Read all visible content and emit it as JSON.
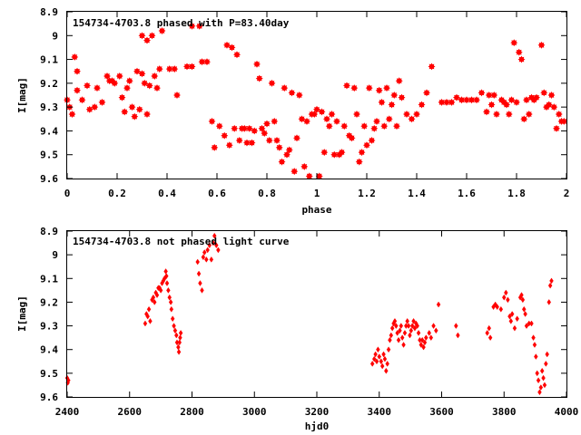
{
  "colors": {
    "marker": "#ff0000",
    "frame": "#000000",
    "background": "#ffffff"
  },
  "chart_data": [
    {
      "type": "scatter",
      "title": "154734-4703.8 phased with P=83.40day",
      "xlabel": "phase",
      "ylabel": "I[mag]",
      "xlim": [
        0,
        2
      ],
      "ylim": [
        9.6,
        8.9
      ],
      "y_inverted": true,
      "grid": false,
      "marker": "star",
      "xticks": [
        "0",
        "0.2",
        "0.4",
        "0.6",
        "0.8",
        "1",
        "1.2",
        "1.4",
        "1.6",
        "1.8",
        "2"
      ],
      "yticks": [
        "8.9",
        "9",
        "9.1",
        "9.2",
        "9.3",
        "9.4",
        "9.5",
        "9.6"
      ],
      "xtick_values": [
        0,
        0.2,
        0.4,
        0.6,
        0.8,
        1,
        1.2,
        1.4,
        1.6,
        1.8,
        2
      ],
      "ytick_values": [
        8.9,
        9.0,
        9.1,
        9.2,
        9.3,
        9.4,
        9.5,
        9.6
      ],
      "points": [
        [
          0.0,
          9.27
        ],
        [
          0.01,
          9.3
        ],
        [
          0.02,
          9.33
        ],
        [
          0.03,
          9.09
        ],
        [
          0.04,
          9.15
        ],
        [
          0.04,
          9.23
        ],
        [
          0.06,
          9.27
        ],
        [
          0.08,
          9.21
        ],
        [
          0.09,
          9.31
        ],
        [
          0.11,
          9.3
        ],
        [
          0.12,
          9.22
        ],
        [
          0.14,
          9.28
        ],
        [
          0.16,
          9.17
        ],
        [
          0.17,
          9.19
        ],
        [
          0.18,
          9.19
        ],
        [
          0.19,
          9.2
        ],
        [
          0.21,
          9.17
        ],
        [
          0.22,
          9.26
        ],
        [
          0.23,
          9.32
        ],
        [
          0.24,
          9.22
        ],
        [
          0.25,
          9.19
        ],
        [
          0.26,
          9.3
        ],
        [
          0.27,
          9.34
        ],
        [
          0.28,
          9.15
        ],
        [
          0.29,
          9.31
        ],
        [
          0.3,
          9.16
        ],
        [
          0.3,
          9.0
        ],
        [
          0.31,
          9.2
        ],
        [
          0.32,
          9.33
        ],
        [
          0.32,
          9.02
        ],
        [
          0.33,
          9.21
        ],
        [
          0.34,
          9.0
        ],
        [
          0.35,
          9.17
        ],
        [
          0.36,
          9.22
        ],
        [
          0.37,
          9.14
        ],
        [
          0.38,
          8.98
        ],
        [
          0.41,
          9.14
        ],
        [
          0.43,
          9.14
        ],
        [
          0.44,
          9.25
        ],
        [
          0.48,
          9.13
        ],
        [
          0.5,
          8.96
        ],
        [
          0.5,
          9.13
        ],
        [
          0.53,
          8.96
        ],
        [
          0.54,
          9.11
        ],
        [
          0.56,
          9.11
        ],
        [
          0.58,
          9.36
        ],
        [
          0.59,
          9.47
        ],
        [
          0.61,
          9.38
        ],
        [
          0.63,
          9.42
        ],
        [
          0.64,
          9.04
        ],
        [
          0.65,
          9.46
        ],
        [
          0.66,
          9.05
        ],
        [
          0.67,
          9.39
        ],
        [
          0.68,
          9.08
        ],
        [
          0.69,
          9.44
        ],
        [
          0.7,
          9.39
        ],
        [
          0.71,
          9.39
        ],
        [
          0.72,
          9.45
        ],
        [
          0.73,
          9.39
        ],
        [
          0.74,
          9.45
        ],
        [
          0.75,
          9.4
        ],
        [
          0.76,
          9.12
        ],
        [
          0.77,
          9.18
        ],
        [
          0.78,
          9.39
        ],
        [
          0.79,
          9.41
        ],
        [
          0.8,
          9.37
        ],
        [
          0.81,
          9.44
        ],
        [
          0.82,
          9.2
        ],
        [
          0.83,
          9.36
        ],
        [
          0.84,
          9.44
        ],
        [
          0.85,
          9.47
        ],
        [
          0.86,
          9.53
        ],
        [
          0.87,
          9.22
        ],
        [
          0.88,
          9.5
        ],
        [
          0.89,
          9.48
        ],
        [
          0.9,
          9.24
        ],
        [
          0.91,
          9.57
        ],
        [
          0.92,
          9.43
        ],
        [
          0.93,
          9.25
        ],
        [
          0.94,
          9.35
        ],
        [
          0.95,
          9.55
        ],
        [
          0.96,
          9.36
        ],
        [
          0.97,
          9.59
        ],
        [
          0.98,
          9.33
        ],
        [
          0.99,
          9.33
        ],
        [
          1.0,
          9.31
        ],
        [
          1.01,
          9.59
        ],
        [
          1.02,
          9.32
        ],
        [
          1.03,
          9.49
        ],
        [
          1.04,
          9.35
        ],
        [
          1.05,
          9.38
        ],
        [
          1.06,
          9.33
        ],
        [
          1.07,
          9.5
        ],
        [
          1.08,
          9.36
        ],
        [
          1.09,
          9.5
        ],
        [
          1.1,
          9.49
        ],
        [
          1.11,
          9.38
        ],
        [
          1.12,
          9.21
        ],
        [
          1.13,
          9.42
        ],
        [
          1.14,
          9.43
        ],
        [
          1.15,
          9.22
        ],
        [
          1.16,
          9.33
        ],
        [
          1.17,
          9.53
        ],
        [
          1.18,
          9.49
        ],
        [
          1.19,
          9.38
        ],
        [
          1.2,
          9.46
        ],
        [
          1.21,
          9.22
        ],
        [
          1.22,
          9.44
        ],
        [
          1.23,
          9.39
        ],
        [
          1.24,
          9.36
        ],
        [
          1.25,
          9.23
        ],
        [
          1.26,
          9.28
        ],
        [
          1.27,
          9.38
        ],
        [
          1.28,
          9.22
        ],
        [
          1.29,
          9.35
        ],
        [
          1.3,
          9.29
        ],
        [
          1.31,
          9.25
        ],
        [
          1.32,
          9.38
        ],
        [
          1.33,
          9.19
        ],
        [
          1.34,
          9.26
        ],
        [
          1.36,
          9.33
        ],
        [
          1.38,
          9.35
        ],
        [
          1.4,
          9.33
        ],
        [
          1.42,
          9.29
        ],
        [
          1.44,
          9.24
        ],
        [
          1.46,
          9.13
        ],
        [
          1.5,
          9.28
        ],
        [
          1.52,
          9.28
        ],
        [
          1.54,
          9.28
        ],
        [
          1.56,
          9.26
        ],
        [
          1.58,
          9.27
        ],
        [
          1.6,
          9.27
        ],
        [
          1.62,
          9.27
        ],
        [
          1.64,
          9.27
        ],
        [
          1.66,
          9.24
        ],
        [
          1.68,
          9.32
        ],
        [
          1.69,
          9.25
        ],
        [
          1.7,
          9.29
        ],
        [
          1.71,
          9.25
        ],
        [
          1.72,
          9.33
        ],
        [
          1.74,
          9.27
        ],
        [
          1.75,
          9.28
        ],
        [
          1.76,
          9.29
        ],
        [
          1.77,
          9.33
        ],
        [
          1.78,
          9.27
        ],
        [
          1.79,
          9.03
        ],
        [
          1.8,
          9.28
        ],
        [
          1.81,
          9.07
        ],
        [
          1.82,
          9.1
        ],
        [
          1.83,
          9.35
        ],
        [
          1.84,
          9.27
        ],
        [
          1.85,
          9.33
        ],
        [
          1.86,
          9.26
        ],
        [
          1.87,
          9.27
        ],
        [
          1.88,
          9.26
        ],
        [
          1.9,
          9.04
        ],
        [
          1.91,
          9.24
        ],
        [
          1.92,
          9.3
        ],
        [
          1.93,
          9.29
        ],
        [
          1.94,
          9.25
        ],
        [
          1.95,
          9.3
        ],
        [
          1.96,
          9.39
        ],
        [
          1.97,
          9.33
        ],
        [
          1.98,
          9.36
        ],
        [
          1.99,
          9.36
        ]
      ]
    },
    {
      "type": "scatter",
      "title": "154734-4703.8 not phased light curve",
      "xlabel": "hjd0",
      "ylabel": "I[mag]",
      "xlim": [
        2400,
        4000
      ],
      "ylim": [
        9.6,
        8.9
      ],
      "y_inverted": true,
      "grid": false,
      "marker": "diamond",
      "xticks": [
        "2400",
        "2600",
        "2800",
        "3000",
        "3200",
        "3400",
        "3600",
        "3800",
        "4000"
      ],
      "yticks": [
        "8.9",
        "9",
        "9.1",
        "9.2",
        "9.3",
        "9.4",
        "9.5",
        "9.6"
      ],
      "xtick_values": [
        2400,
        2600,
        2800,
        3000,
        3200,
        3400,
        3600,
        3800,
        4000
      ],
      "ytick_values": [
        8.9,
        9.0,
        9.1,
        9.2,
        9.3,
        9.4,
        9.5,
        9.6
      ],
      "points": [
        [
          2400,
          9.52
        ],
        [
          2402,
          9.54
        ],
        [
          2404,
          9.53
        ],
        [
          2650,
          9.29
        ],
        [
          2654,
          9.25
        ],
        [
          2658,
          9.26
        ],
        [
          2662,
          9.23
        ],
        [
          2666,
          9.28
        ],
        [
          2672,
          9.19
        ],
        [
          2676,
          9.18
        ],
        [
          2680,
          9.2
        ],
        [
          2684,
          9.16
        ],
        [
          2688,
          9.17
        ],
        [
          2692,
          9.14
        ],
        [
          2696,
          9.14
        ],
        [
          2700,
          9.15
        ],
        [
          2704,
          9.12
        ],
        [
          2708,
          9.11
        ],
        [
          2712,
          9.1
        ],
        [
          2716,
          9.07
        ],
        [
          2718,
          9.09
        ],
        [
          2720,
          9.12
        ],
        [
          2724,
          9.15
        ],
        [
          2728,
          9.18
        ],
        [
          2732,
          9.2
        ],
        [
          2734,
          9.23
        ],
        [
          2738,
          9.27
        ],
        [
          2742,
          9.3
        ],
        [
          2746,
          9.32
        ],
        [
          2750,
          9.34
        ],
        [
          2752,
          9.37
        ],
        [
          2756,
          9.39
        ],
        [
          2758,
          9.41
        ],
        [
          2760,
          9.37
        ],
        [
          2762,
          9.35
        ],
        [
          2764,
          9.33
        ],
        [
          2818,
          9.03
        ],
        [
          2822,
          9.08
        ],
        [
          2826,
          9.12
        ],
        [
          2832,
          9.15
        ],
        [
          2836,
          9.01
        ],
        [
          2840,
          8.99
        ],
        [
          2846,
          9.02
        ],
        [
          2850,
          8.98
        ],
        [
          2856,
          8.96
        ],
        [
          2862,
          9.02
        ],
        [
          2868,
          8.95
        ],
        [
          2872,
          8.92
        ],
        [
          2878,
          8.96
        ],
        [
          2884,
          8.98
        ],
        [
          3378,
          9.46
        ],
        [
          3384,
          9.44
        ],
        [
          3388,
          9.42
        ],
        [
          3392,
          9.45
        ],
        [
          3396,
          9.4
        ],
        [
          3400,
          9.43
        ],
        [
          3406,
          9.45
        ],
        [
          3410,
          9.47
        ],
        [
          3414,
          9.42
        ],
        [
          3418,
          9.44
        ],
        [
          3422,
          9.49
        ],
        [
          3426,
          9.46
        ],
        [
          3430,
          9.4
        ],
        [
          3434,
          9.36
        ],
        [
          3438,
          9.34
        ],
        [
          3442,
          9.31
        ],
        [
          3446,
          9.29
        ],
        [
          3450,
          9.28
        ],
        [
          3454,
          9.3
        ],
        [
          3458,
          9.33
        ],
        [
          3462,
          9.36
        ],
        [
          3466,
          9.32
        ],
        [
          3470,
          9.3
        ],
        [
          3474,
          9.35
        ],
        [
          3478,
          9.38
        ],
        [
          3482,
          9.33
        ],
        [
          3486,
          9.3
        ],
        [
          3490,
          9.28
        ],
        [
          3494,
          9.3
        ],
        [
          3498,
          9.34
        ],
        [
          3502,
          9.32
        ],
        [
          3506,
          9.3
        ],
        [
          3510,
          9.28
        ],
        [
          3514,
          9.31
        ],
        [
          3518,
          9.29
        ],
        [
          3522,
          9.3
        ],
        [
          3526,
          9.33
        ],
        [
          3530,
          9.36
        ],
        [
          3534,
          9.38
        ],
        [
          3538,
          9.36
        ],
        [
          3542,
          9.39
        ],
        [
          3546,
          9.37
        ],
        [
          3550,
          9.35
        ],
        [
          3560,
          9.33
        ],
        [
          3566,
          9.35
        ],
        [
          3574,
          9.3
        ],
        [
          3582,
          9.32
        ],
        [
          3590,
          9.21
        ],
        [
          3646,
          9.3
        ],
        [
          3652,
          9.34
        ],
        [
          3746,
          9.33
        ],
        [
          3752,
          9.31
        ],
        [
          3756,
          9.35
        ],
        [
          3766,
          9.22
        ],
        [
          3772,
          9.21
        ],
        [
          3778,
          9.22
        ],
        [
          3790,
          9.23
        ],
        [
          3800,
          9.18
        ],
        [
          3806,
          9.16
        ],
        [
          3812,
          9.19
        ],
        [
          3818,
          9.26
        ],
        [
          3822,
          9.28
        ],
        [
          3826,
          9.25
        ],
        [
          3834,
          9.31
        ],
        [
          3842,
          9.27
        ],
        [
          3852,
          9.18
        ],
        [
          3856,
          9.17
        ],
        [
          3860,
          9.19
        ],
        [
          3864,
          9.23
        ],
        [
          3868,
          9.25
        ],
        [
          3872,
          9.3
        ],
        [
          3880,
          9.29
        ],
        [
          3888,
          9.29
        ],
        [
          3894,
          9.35
        ],
        [
          3898,
          9.38
        ],
        [
          3902,
          9.43
        ],
        [
          3906,
          9.5
        ],
        [
          3910,
          9.53
        ],
        [
          3914,
          9.58
        ],
        [
          3918,
          9.56
        ],
        [
          3922,
          9.49
        ],
        [
          3926,
          9.52
        ],
        [
          3930,
          9.55
        ],
        [
          3934,
          9.46
        ],
        [
          3938,
          9.42
        ],
        [
          3944,
          9.2
        ],
        [
          3948,
          9.13
        ],
        [
          3952,
          9.11
        ]
      ]
    }
  ]
}
